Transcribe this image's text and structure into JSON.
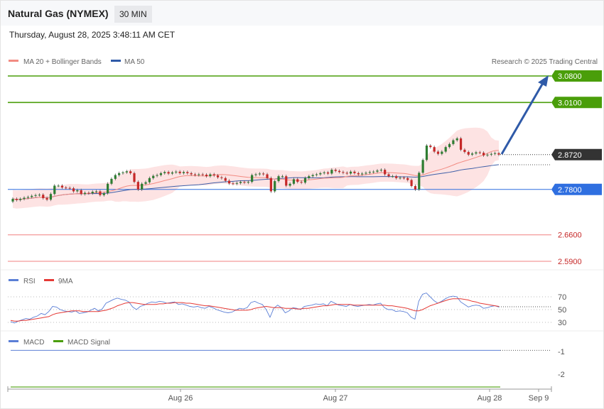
{
  "header": {
    "title": "Natural Gas (NYMEX)",
    "timeframe": "30 MIN",
    "datetime": "Thursday, August 28, 2025 3:48:11 AM CET"
  },
  "legend": {
    "ma20": "MA 20 + Bollinger Bands",
    "ma50": "MA 50",
    "credit": "Research © 2025 Trading Central",
    "rsi": "RSI",
    "rsi_ma": "9MA",
    "macd": "MACD",
    "macd_signal": "MACD Signal"
  },
  "colors": {
    "up_candle": "#2e7d32",
    "down_candle": "#c62828",
    "ma20": "#f28b82",
    "ma50": "#3f5fa8",
    "bollinger_fill": "#fde3e3",
    "resistance": "#4a9e0a",
    "support": "#2f6fe0",
    "target_support": "#f08080",
    "current_price_tag": "#333333",
    "arrow": "#2f5aa8",
    "rsi": "#5b7fd6",
    "rsi_ma": "#e53935",
    "macd": "#5b7fd6",
    "macd_signal": "#4a9e0a"
  },
  "chart_data": [
    {
      "type": "candlestick",
      "name": "price",
      "x_labels": [
        "Aug 26",
        "Aug 27",
        "Aug 28",
        "Sep 9"
      ],
      "levels": [
        {
          "label": "3.0800",
          "value": 3.08,
          "kind": "resistance"
        },
        {
          "label": "3.0100",
          "value": 3.01,
          "kind": "resistance"
        },
        {
          "label": "2.8720",
          "value": 2.872,
          "kind": "current"
        },
        {
          "label": "2.7800",
          "value": 2.78,
          "kind": "pivot"
        },
        {
          "label": "2.6600",
          "value": 2.66,
          "kind": "support"
        },
        {
          "label": "2.5900",
          "value": 2.59,
          "kind": "support"
        }
      ],
      "close": [
        2.755,
        2.752,
        2.755,
        2.758,
        2.76,
        2.763,
        2.765,
        2.766,
        2.757,
        2.753,
        2.768,
        2.79,
        2.79,
        2.785,
        2.784,
        2.783,
        2.775,
        2.778,
        2.768,
        2.771,
        2.77,
        2.774,
        2.775,
        2.765,
        2.77,
        2.795,
        2.808,
        2.818,
        2.823,
        2.825,
        2.828,
        2.823,
        2.8,
        2.78,
        2.795,
        2.799,
        2.81,
        2.816,
        2.818,
        2.823,
        2.826,
        2.822,
        2.825,
        2.827,
        2.823,
        2.826,
        2.823,
        2.82,
        2.818,
        2.82,
        2.819,
        2.815,
        2.82,
        2.817,
        2.812,
        2.81,
        2.803,
        2.796,
        2.795,
        2.797,
        2.8,
        2.798,
        2.8,
        2.818,
        2.82,
        2.822,
        2.82,
        2.81,
        2.775,
        2.802,
        2.815,
        2.815,
        2.79,
        2.795,
        2.807,
        2.8,
        2.798,
        2.81,
        2.815,
        2.818,
        2.82,
        2.823,
        2.825,
        2.822,
        2.832,
        2.829,
        2.826,
        2.824,
        2.822,
        2.827,
        2.823,
        2.82,
        2.822,
        2.824,
        2.826,
        2.827,
        2.83,
        2.832,
        2.82,
        2.815,
        2.815,
        2.81,
        2.811,
        2.81,
        2.805,
        2.789,
        2.78,
        2.824,
        2.858,
        2.896,
        2.892,
        2.88,
        2.874,
        2.88,
        2.892,
        2.9,
        2.91,
        2.915,
        2.885,
        2.879,
        2.872,
        2.875,
        2.878,
        2.877,
        2.87,
        2.872,
        2.874,
        2.876,
        2.872
      ],
      "open": [
        2.748,
        2.755,
        2.752,
        2.755,
        2.758,
        2.76,
        2.763,
        2.765,
        2.766,
        2.757,
        2.753,
        2.768,
        2.79,
        2.79,
        2.785,
        2.784,
        2.783,
        2.775,
        2.778,
        2.768,
        2.771,
        2.77,
        2.774,
        2.775,
        2.765,
        2.77,
        2.795,
        2.808,
        2.818,
        2.823,
        2.825,
        2.828,
        2.823,
        2.8,
        2.78,
        2.795,
        2.799,
        2.81,
        2.816,
        2.818,
        2.823,
        2.826,
        2.822,
        2.825,
        2.827,
        2.823,
        2.826,
        2.823,
        2.82,
        2.818,
        2.82,
        2.819,
        2.815,
        2.82,
        2.817,
        2.812,
        2.81,
        2.803,
        2.796,
        2.795,
        2.797,
        2.8,
        2.798,
        2.8,
        2.818,
        2.82,
        2.822,
        2.82,
        2.81,
        2.775,
        2.802,
        2.815,
        2.815,
        2.79,
        2.795,
        2.807,
        2.8,
        2.798,
        2.81,
        2.815,
        2.818,
        2.82,
        2.823,
        2.825,
        2.822,
        2.832,
        2.829,
        2.826,
        2.824,
        2.822,
        2.827,
        2.823,
        2.82,
        2.822,
        2.824,
        2.826,
        2.827,
        2.83,
        2.832,
        2.82,
        2.815,
        2.815,
        2.81,
        2.811,
        2.81,
        2.805,
        2.789,
        2.78,
        2.824,
        2.858,
        2.896,
        2.892,
        2.88,
        2.874,
        2.88,
        2.892,
        2.9,
        2.91,
        2.915,
        2.885,
        2.879,
        2.872,
        2.875,
        2.878,
        2.877,
        2.87,
        2.872,
        2.874,
        2.876
      ]
    },
    {
      "type": "line",
      "name": "RSI",
      "yticks": [
        70,
        50,
        30
      ],
      "ylim": [
        20,
        80
      ],
      "series": [
        {
          "name": "RSI",
          "values": [
            31,
            29,
            32,
            34,
            36,
            35,
            38,
            40,
            44,
            42,
            47,
            55,
            54,
            50,
            48,
            47,
            46,
            48,
            44,
            45,
            46,
            49,
            52,
            48,
            51,
            60,
            63,
            66,
            68,
            66,
            65,
            62,
            54,
            50,
            55,
            57,
            60,
            62,
            61,
            63,
            62,
            60,
            61,
            62,
            58,
            59,
            57,
            55,
            54,
            55,
            53,
            52,
            55,
            53,
            50,
            48,
            46,
            45,
            46,
            49,
            52,
            51,
            53,
            61,
            63,
            60,
            58,
            50,
            38,
            52,
            57,
            53,
            45,
            48,
            53,
            52,
            50,
            55,
            56,
            57,
            59,
            58,
            59,
            56,
            63,
            60,
            57,
            56,
            55,
            58,
            56,
            55,
            56,
            57,
            58,
            57,
            59,
            60,
            53,
            50,
            50,
            47,
            48,
            47,
            45,
            38,
            35,
            63,
            74,
            76,
            70,
            64,
            60,
            63,
            67,
            70,
            71,
            70,
            62,
            58,
            54,
            56,
            57,
            56,
            52,
            53,
            55,
            56,
            54
          ]
        },
        {
          "name": "9MA",
          "values": [
            33,
            32,
            32,
            33,
            33,
            34,
            35,
            36,
            37,
            38,
            39,
            42,
            44,
            45,
            46,
            47,
            48,
            48,
            48,
            47,
            47,
            47,
            47,
            47,
            48,
            49,
            51,
            53,
            56,
            58,
            60,
            61,
            61,
            60,
            59,
            58,
            58,
            58,
            58,
            59,
            59,
            60,
            60,
            61,
            61,
            61,
            60,
            60,
            59,
            58,
            57,
            56,
            56,
            55,
            54,
            53,
            52,
            51,
            50,
            49,
            49,
            49,
            49,
            50,
            52,
            53,
            54,
            55,
            54,
            53,
            53,
            53,
            52,
            52,
            52,
            51,
            51,
            52,
            52,
            53,
            54,
            55,
            56,
            56,
            57,
            58,
            58,
            58,
            58,
            58,
            57,
            57,
            57,
            57,
            57,
            57,
            57,
            57,
            57,
            56,
            56,
            55,
            54,
            53,
            52,
            50,
            48,
            48,
            50,
            53,
            56,
            58,
            60,
            62,
            64,
            66,
            67,
            67,
            67,
            66,
            65,
            63,
            62,
            60,
            59,
            58,
            57,
            56,
            55
          ]
        }
      ]
    },
    {
      "type": "line",
      "name": "MACD",
      "yticks": [
        -1,
        -2
      ],
      "series": [
        {
          "name": "MACD",
          "values": [
            -0.98,
            -0.98
          ]
        },
        {
          "name": "MACD Signal",
          "values": [
            -3.0,
            -3.0
          ]
        }
      ]
    }
  ]
}
